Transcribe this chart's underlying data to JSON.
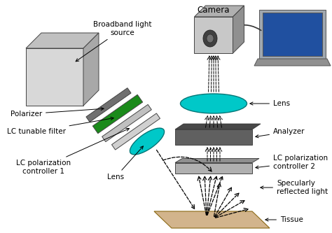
{
  "background_color": "#ffffff",
  "text_color": "#000000",
  "teal_color": "#00C8C8",
  "green_dark": "#1a7a1a",
  "gray_box": "#c8c8c8",
  "gray_dark_plate": "#606060",
  "gray_light_plate": "#b8b8b8",
  "figsize": [
    4.74,
    3.33
  ],
  "dpi": 100,
  "labels": {
    "camera": "Camera",
    "broadband": "Broadband light\nsource",
    "polarizer": "Polarizer",
    "lc_filter": "LC tunable filter",
    "lc_ctrl1": "LC polarization\ncontroller 1",
    "lens_left": "Lens",
    "lens_right": "Lens",
    "analyzer": "Analyzer",
    "lc_ctrl2": "LC polarization\ncontroller 2",
    "tissue": "Tissue",
    "specular": "Specularly\nreflected light"
  }
}
